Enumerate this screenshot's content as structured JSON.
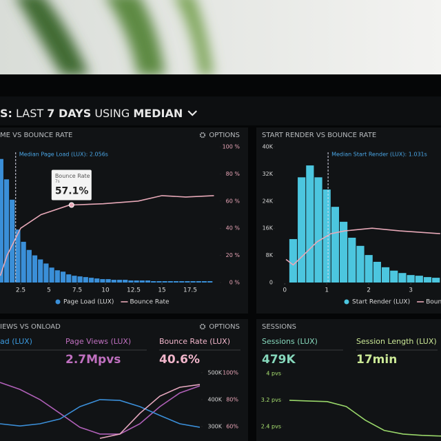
{
  "header": {
    "parts": [
      "S:",
      "LAST",
      "7 DAYS",
      "USING",
      "MEDIAN"
    ]
  },
  "chart_data": [
    {
      "type": "histogram",
      "title": "ME VS BOUNCE RATE",
      "options": "OPTIONS",
      "annotation": "Median Page Load (LUX): 2.056s",
      "median": 2.056,
      "tooltip": {
        "title": "Bounce Rate",
        "subtitle": "7s",
        "value_label": "57.1%",
        "x": 7,
        "value": 57.1
      },
      "xlim": [
        0.67,
        20.06
      ],
      "xticks": [
        2.5,
        5,
        7.5,
        10,
        12.5,
        15,
        17.5
      ],
      "ylim": [
        0,
        100
      ],
      "y2lim": [
        0,
        100
      ],
      "y2ticks": [
        {
          "value": 100,
          "label": "100 %"
        },
        {
          "value": 80,
          "label": "80 %"
        },
        {
          "value": 60,
          "label": "60 %"
        },
        {
          "value": 40,
          "label": "40 %"
        },
        {
          "value": 20,
          "label": "20 %"
        },
        {
          "value": 0,
          "label": "0 %"
        }
      ],
      "bins": [
        0.5,
        1,
        1.5,
        2,
        2.5,
        3,
        3.5,
        4,
        4.5,
        5,
        5.5,
        6,
        6.5,
        7,
        7.5,
        8,
        8.5,
        9,
        9.5,
        10,
        10.5,
        11,
        11.5,
        12,
        12.5,
        13,
        13.5,
        14,
        14.5,
        15,
        15.5,
        16,
        16.5,
        17,
        17.5,
        18,
        18.5,
        19,
        19.5
      ],
      "series": [
        {
          "name": "Page Load (LUX)",
          "color": "#3a8fd8",
          "values": [
            91,
            76,
            61,
            39,
            30,
            24,
            20,
            17,
            14,
            11,
            9,
            8,
            6,
            5,
            4.5,
            4,
            3.5,
            3,
            2.5,
            2.5,
            2,
            2,
            2,
            1.5,
            1.5,
            1.5,
            1.5,
            1,
            1,
            1,
            1,
            1,
            1,
            1,
            1,
            1,
            1,
            1
          ]
        },
        {
          "name": "Bounce Rate",
          "color": "#e8a9b8",
          "axis": "y2",
          "x": [
            0.7,
            1.3,
            2.5,
            4.3,
            6.8,
            7,
            9.8,
            12.9,
            15,
            17.1,
            19.6
          ],
          "values": [
            5,
            20,
            40,
            50,
            57,
            57.1,
            58,
            60,
            64,
            63,
            64
          ]
        }
      ]
    },
    {
      "type": "histogram",
      "title": "START RENDER VS BOUNCE RATE",
      "annotation": "Median Start Render (LUX): 1.031s",
      "median": 1.031,
      "xlim": [
        -0.3,
        3.72
      ],
      "xticks": [
        0,
        1,
        2,
        3
      ],
      "ylim": [
        0,
        40000
      ],
      "yticks": [
        {
          "value": 40000,
          "label": "40K"
        },
        {
          "value": 32000,
          "label": "32K"
        },
        {
          "value": 24000,
          "label": "24K"
        },
        {
          "value": 16000,
          "label": "16K"
        },
        {
          "value": 8000,
          "label": "8K"
        },
        0
      ],
      "y2lim": [
        0,
        100
      ],
      "bins": [
        0.1,
        0.3,
        0.5,
        0.7,
        0.9,
        1.1,
        1.3,
        1.5,
        1.7,
        1.9,
        2.1,
        2.3,
        2.5,
        2.7,
        2.9,
        3.1,
        3.3,
        3.5,
        3.7
      ],
      "series": [
        {
          "name": "Start Render (LUX)",
          "color": "#4cc6df",
          "values": [
            12800,
            31000,
            34500,
            31000,
            27400,
            22300,
            17900,
            13200,
            10800,
            8100,
            6100,
            4500,
            3500,
            2800,
            2200,
            2000,
            1600,
            1400
          ]
        },
        {
          "name": "Bounce Ra",
          "color": "#e8a9b8",
          "axis": "y2",
          "x": [
            0.03,
            0.2,
            0.44,
            0.77,
            1.1,
            1.43,
            2.08,
            2.74,
            3.7
          ],
          "values": [
            17,
            13,
            20,
            30,
            36,
            38,
            40,
            38,
            36
          ]
        }
      ]
    },
    {
      "type": "line",
      "title": "IEWS VS ONLOAD",
      "options": "OPTIONS",
      "metrics": [
        {
          "label": "ad (LUX)",
          "color": "#3b9be0"
        },
        {
          "label": "Page Views (LUX)",
          "value_label": "2.7Mpvs",
          "color": "#c070c0"
        },
        {
          "label": "Bounce Rate (LUX)",
          "value_label": "40.6%",
          "color": "#f2b6cb"
        }
      ],
      "xlim": [
        0,
        10
      ],
      "x": [
        0,
        1,
        2,
        3,
        4,
        5,
        6,
        7,
        8,
        9,
        10
      ],
      "ylim": [
        246000,
        528000
      ],
      "yticks": [
        {
          "value": 500000,
          "label": "500K"
        },
        {
          "value": 400000,
          "label": "400K"
        },
        {
          "value": 300000,
          "label": "300K"
        }
      ],
      "y2lim": [
        49.2,
        105.6
      ],
      "y2ticks": [
        {
          "value": 100,
          "label": "100%"
        },
        {
          "value": 80,
          "label": "80%"
        },
        {
          "value": 60,
          "label": "60%"
        }
      ],
      "series": [
        {
          "color": "#b060b8",
          "values": [
            464000,
            438000,
            400000,
            349000,
            297000,
            272000,
            272000,
            310000,
            374000,
            425000,
            451000
          ]
        },
        {
          "color": "#3b8fd9",
          "values": [
            310000,
            302000,
            310000,
            328000,
            374000,
            400000,
            397000,
            374000,
            341000,
            310000,
            297000
          ]
        },
        {
          "color": "#e8a9c0",
          "values": [
            null,
            null,
            null,
            null,
            null,
            256000,
            272000,
            349000,
            413000,
            446000,
            456000
          ]
        }
      ]
    },
    {
      "type": "line",
      "title": "SESSIONS",
      "metrics": [
        {
          "label": "Sessions (LUX)",
          "value_label": "479K",
          "color": "#86d8bc"
        },
        {
          "label": "Session Length (LUX)",
          "value_label": "17min",
          "color": "#cbe896"
        }
      ],
      "xlim": [
        0,
        8
      ],
      "x": [
        0,
        1,
        2,
        3,
        4,
        5,
        6,
        7,
        8
      ],
      "ylim": [
        1.96,
        4.25
      ],
      "yticks": [
        {
          "value": 4,
          "label": "4 pvs"
        },
        {
          "value": 3.2,
          "label": "3.2 pvs"
        },
        {
          "value": 2.4,
          "label": "2.4 pvs"
        }
      ],
      "series": [
        {
          "color": "#9ad86a",
          "values": [
            3.19,
            3.17,
            3.15,
            3.0,
            2.59,
            2.28,
            2.17,
            2.13,
            2.11
          ]
        }
      ]
    }
  ]
}
